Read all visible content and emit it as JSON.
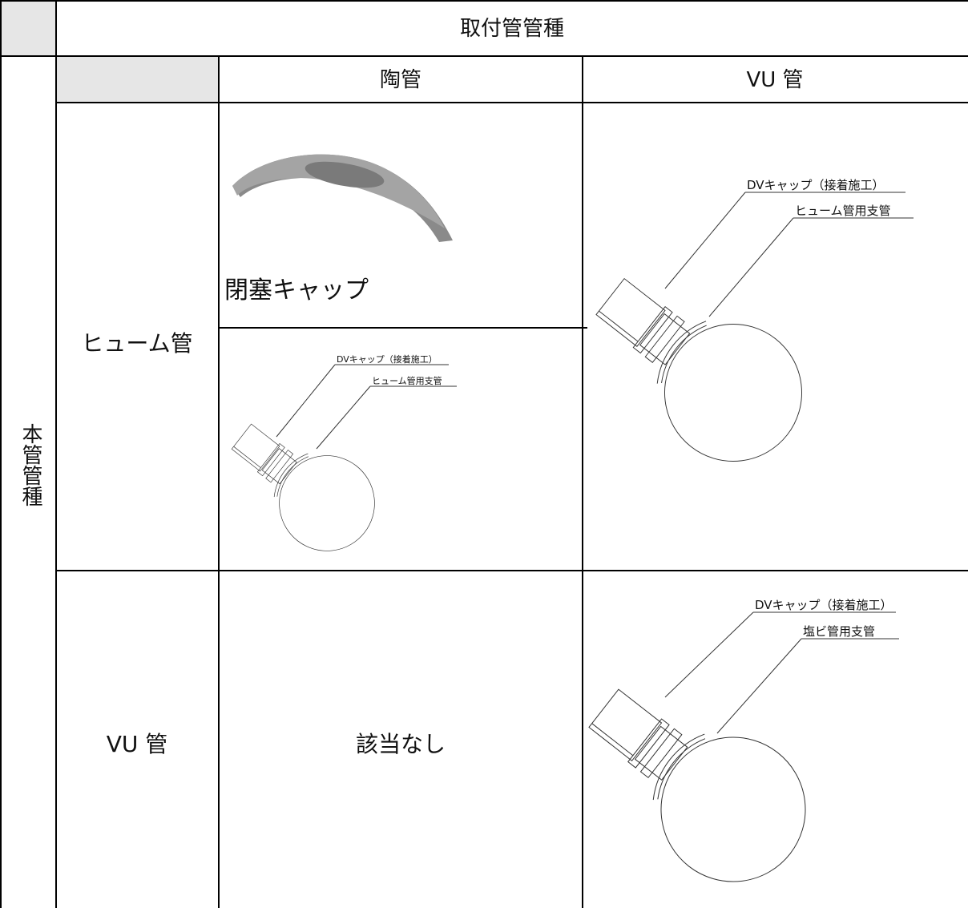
{
  "table": {
    "column_group": "取付管管種",
    "row_group": "本管管種",
    "columns": [
      "陶管",
      "VU 管"
    ],
    "rows": [
      {
        "label": "ヒューム管",
        "cells": [
          {
            "caption": "閉塞キャップ",
            "diagram_labels": [
              "DVキャップ（接着施工）",
              "ヒューム管用支管"
            ]
          },
          {
            "diagram_labels": [
              "DVキャップ（接着施工）",
              "ヒューム管用支管"
            ]
          }
        ]
      },
      {
        "label": "VU 管",
        "cells": [
          {
            "text": "該当なし"
          },
          {
            "diagram_labels": [
              "DVキャップ（接着施工）",
              "塩ビ管用支管"
            ]
          }
        ]
      }
    ]
  }
}
